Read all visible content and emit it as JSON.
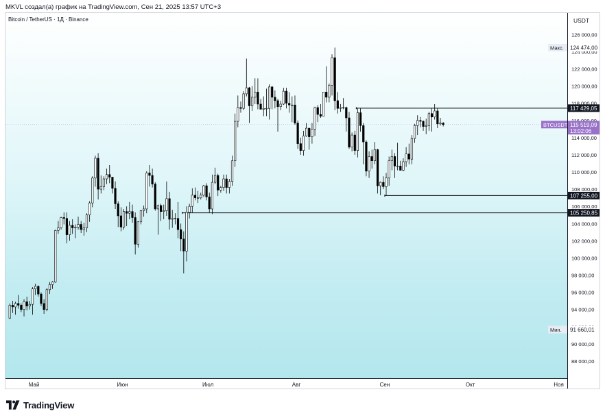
{
  "header": {
    "attribution": "MKVL создал(а) график на TradingView.com, Сен 21, 2025 13:57 UTC+3"
  },
  "symbol": {
    "description": "Bitcoin / TetherUS · 1Д · Binance"
  },
  "axis": {
    "currency": "USDT"
  },
  "footer": {
    "brand": "TradingView"
  },
  "colors": {
    "bull": "#ffffff",
    "bear": "#000000",
    "wick": "#000000",
    "price_tag": "#9a73c9"
  },
  "chart_data": {
    "type": "candlestick",
    "interval": "1D",
    "ylim": [
      86000,
      128500
    ],
    "y_ticks": [
      {
        "value": 88000,
        "label": "88 000,00"
      },
      {
        "value": 90000,
        "label": "90 000,00"
      },
      {
        "value": 92000,
        "label": "92 000,00"
      },
      {
        "value": 94000,
        "label": "94 000,00"
      },
      {
        "value": 96000,
        "label": "96 000,00"
      },
      {
        "value": 98000,
        "label": "98 000,00"
      },
      {
        "value": 100000,
        "label": "100 000,00"
      },
      {
        "value": 102000,
        "label": "102 000,00"
      },
      {
        "value": 104000,
        "label": "104 000,00"
      },
      {
        "value": 106000,
        "label": "106 000,00"
      },
      {
        "value": 108000,
        "label": "108 000,00"
      },
      {
        "value": 110000,
        "label": "110 000,00"
      },
      {
        "value": 112000,
        "label": "112 000,00"
      },
      {
        "value": 114000,
        "label": "114 000,00"
      },
      {
        "value": 116000,
        "label": "116 000,00"
      },
      {
        "value": 118000,
        "label": "118 000,00"
      },
      {
        "value": 120000,
        "label": "120 000,00"
      },
      {
        "value": 122000,
        "label": "122 000,00"
      },
      {
        "value": 124000,
        "label": "124 000,00"
      },
      {
        "value": 126000,
        "label": "126 000,00"
      }
    ],
    "x_ticks": [
      {
        "date": "2025-05-01",
        "label": "Май"
      },
      {
        "date": "2025-06-01",
        "label": "Июн"
      },
      {
        "date": "2025-07-01",
        "label": "Июл"
      },
      {
        "date": "2025-08-01",
        "label": "Авг"
      },
      {
        "date": "2025-09-01",
        "label": "Сен"
      },
      {
        "date": "2025-10-01",
        "label": "Окт"
      },
      {
        "date": "2025-11-01",
        "label": "Ноя"
      }
    ],
    "x_range": [
      "2025-04-21",
      "2025-11-04"
    ],
    "max_marker": {
      "label": "Макс.",
      "value_label": "124 474,00",
      "value": 124474
    },
    "min_marker": {
      "label": "Мин.",
      "value_label": "91 660,01",
      "value": 91660.01
    },
    "current_price": {
      "symbol": "BTCUSDT",
      "value_label": "115 519,09",
      "countdown": "13:02:06",
      "value": 115519.09
    },
    "levels": [
      {
        "value": 117429.05,
        "label": "117 429,05",
        "start": "2025-08-22",
        "style": "solid"
      },
      {
        "value": 107255.0,
        "label": "107 255,00",
        "start": "2025-09-01",
        "style": "solid"
      },
      {
        "value": 105250.85,
        "label": "105 250,85",
        "start": "2025-06-22",
        "style": "solid"
      }
    ],
    "candles": [
      [
        "2025-04-22",
        93000,
        94700,
        92900,
        94500
      ],
      [
        "2025-04-23",
        94500,
        95000,
        93600,
        94300
      ],
      [
        "2025-04-24",
        94300,
        94900,
        93400,
        94700
      ],
      [
        "2025-04-25",
        94700,
        95700,
        94100,
        94500
      ],
      [
        "2025-04-26",
        94500,
        94700,
        93700,
        94000
      ],
      [
        "2025-04-27",
        94000,
        95200,
        93200,
        94900
      ],
      [
        "2025-04-28",
        94900,
        95500,
        93900,
        94400
      ],
      [
        "2025-04-29",
        94400,
        95000,
        94000,
        94600
      ],
      [
        "2025-04-30",
        94600,
        96600,
        93400,
        96400
      ],
      [
        "2025-05-01",
        96400,
        97000,
        95700,
        96700
      ],
      [
        "2025-05-02",
        96700,
        96800,
        95500,
        95800
      ],
      [
        "2025-05-03",
        95800,
        96000,
        94400,
        94700
      ],
      [
        "2025-05-04",
        94700,
        95200,
        93500,
        94000
      ],
      [
        "2025-05-05",
        94000,
        96500,
        93800,
        96300
      ],
      [
        "2025-05-06",
        96300,
        97200,
        95800,
        96900
      ],
      [
        "2025-05-07",
        96900,
        97300,
        96400,
        97200
      ],
      [
        "2025-05-08",
        97200,
        103300,
        97100,
        103200
      ],
      [
        "2025-05-09",
        103200,
        104300,
        102800,
        103500
      ],
      [
        "2025-05-10",
        103500,
        104800,
        103300,
        104700
      ],
      [
        "2025-05-11",
        104700,
        105300,
        103900,
        104600
      ],
      [
        "2025-05-12",
        104600,
        105300,
        101700,
        102700
      ],
      [
        "2025-05-13",
        102700,
        104300,
        102000,
        103800
      ],
      [
        "2025-05-14",
        103800,
        104500,
        102800,
        103500
      ],
      [
        "2025-05-15",
        103500,
        103900,
        102300,
        103600
      ],
      [
        "2025-05-16",
        103600,
        104800,
        103300,
        103900
      ],
      [
        "2025-05-17",
        103900,
        104300,
        102900,
        103300
      ],
      [
        "2025-05-18",
        103300,
        104100,
        102600,
        103500
      ],
      [
        "2025-05-19",
        103500,
        105200,
        103000,
        105000
      ],
      [
        "2025-05-20",
        105000,
        106600,
        104200,
        106400
      ],
      [
        "2025-05-21",
        106400,
        109500,
        105900,
        109300
      ],
      [
        "2025-05-22",
        109300,
        111900,
        108300,
        111600
      ],
      [
        "2025-05-23",
        111600,
        112200,
        106800,
        108000
      ],
      [
        "2025-05-24",
        108000,
        109600,
        107500,
        108300
      ],
      [
        "2025-05-25",
        108300,
        109500,
        107900,
        109200
      ],
      [
        "2025-05-26",
        109200,
        110400,
        108600,
        109700
      ],
      [
        "2025-05-27",
        109700,
        110800,
        108700,
        109400
      ],
      [
        "2025-05-28",
        109400,
        109400,
        107500,
        108100
      ],
      [
        "2025-05-29",
        108100,
        108900,
        105700,
        106300
      ],
      [
        "2025-05-30",
        106300,
        106600,
        103600,
        104900
      ],
      [
        "2025-05-31",
        104900,
        105900,
        103100,
        103600
      ],
      [
        "2025-06-01",
        103600,
        105700,
        103300,
        105400
      ],
      [
        "2025-06-02",
        105400,
        106000,
        103700,
        105200
      ],
      [
        "2025-06-03",
        105200,
        106500,
        104500,
        105400
      ],
      [
        "2025-06-04",
        105400,
        106200,
        104100,
        104700
      ],
      [
        "2025-06-05",
        104700,
        105300,
        100400,
        101600
      ],
      [
        "2025-06-06",
        101600,
        104300,
        101200,
        104200
      ],
      [
        "2025-06-07",
        104200,
        105600,
        103900,
        105500
      ],
      [
        "2025-06-08",
        105500,
        106100,
        104800,
        105700
      ],
      [
        "2025-06-09",
        105700,
        110100,
        105200,
        109900
      ],
      [
        "2025-06-10",
        109900,
        110800,
        108300,
        109600
      ],
      [
        "2025-06-11",
        109600,
        110400,
        108200,
        108600
      ],
      [
        "2025-06-12",
        108600,
        108800,
        105500,
        105700
      ],
      [
        "2025-06-13",
        105700,
        106200,
        102700,
        106100
      ],
      [
        "2025-06-14",
        106100,
        106300,
        104300,
        105400
      ],
      [
        "2025-06-15",
        105400,
        106200,
        104500,
        105500
      ],
      [
        "2025-06-16",
        105500,
        108900,
        104900,
        106900
      ],
      [
        "2025-06-17",
        106900,
        107700,
        103300,
        104500
      ],
      [
        "2025-06-18",
        104500,
        105600,
        103500,
        104600
      ],
      [
        "2025-06-19",
        104600,
        105200,
        103900,
        104600
      ],
      [
        "2025-06-20",
        104600,
        106500,
        102300,
        103300
      ],
      [
        "2025-06-21",
        103300,
        104000,
        100800,
        102200
      ],
      [
        "2025-06-22",
        102200,
        103100,
        98200,
        100800
      ],
      [
        "2025-06-23",
        100800,
        106000,
        99600,
        105300
      ],
      [
        "2025-06-24",
        105300,
        106300,
        104600,
        106000
      ],
      [
        "2025-06-25",
        106000,
        108100,
        105300,
        107300
      ],
      [
        "2025-06-26",
        107300,
        108200,
        106700,
        107000
      ],
      [
        "2025-06-27",
        107000,
        107800,
        106400,
        107000
      ],
      [
        "2025-06-28",
        107000,
        107600,
        106800,
        107300
      ],
      [
        "2025-06-29",
        107300,
        108500,
        107100,
        108400
      ],
      [
        "2025-06-30",
        108400,
        108700,
        106700,
        107100
      ],
      [
        "2025-07-01",
        107100,
        107600,
        105300,
        105700
      ],
      [
        "2025-07-02",
        105700,
        109700,
        105100,
        108800
      ],
      [
        "2025-07-03",
        108800,
        110500,
        108600,
        109600
      ],
      [
        "2025-07-04",
        109600,
        109800,
        107200,
        107900
      ],
      [
        "2025-07-05",
        107900,
        108400,
        107600,
        108200
      ],
      [
        "2025-07-06",
        108200,
        109700,
        107800,
        109200
      ],
      [
        "2025-07-07",
        109200,
        109700,
        107500,
        108200
      ],
      [
        "2025-07-08",
        108200,
        109200,
        107500,
        108900
      ],
      [
        "2025-07-09",
        108900,
        111900,
        108400,
        111300
      ],
      [
        "2025-07-10",
        111300,
        116800,
        110600,
        115900
      ],
      [
        "2025-07-11",
        115900,
        118900,
        115200,
        117500
      ],
      [
        "2025-07-12",
        117500,
        118200,
        116900,
        117400
      ],
      [
        "2025-07-13",
        117400,
        119400,
        117200,
        119100
      ],
      [
        "2025-07-14",
        119100,
        123200,
        118800,
        119800
      ],
      [
        "2025-07-15",
        119800,
        119900,
        115700,
        117700
      ],
      [
        "2025-07-16",
        117700,
        120000,
        117100,
        118700
      ],
      [
        "2025-07-17",
        118700,
        120900,
        117900,
        119300
      ],
      [
        "2025-07-18",
        119300,
        120900,
        117300,
        117900
      ],
      [
        "2025-07-19",
        117900,
        118500,
        117500,
        117300
      ],
      [
        "2025-07-20",
        117300,
        118800,
        116500,
        117400
      ],
      [
        "2025-07-21",
        117400,
        119700,
        116500,
        117400
      ],
      [
        "2025-07-22",
        117400,
        120200,
        116100,
        119900
      ],
      [
        "2025-07-23",
        119900,
        120000,
        117300,
        118700
      ],
      [
        "2025-07-24",
        118700,
        119500,
        117400,
        118300
      ],
      [
        "2025-07-25",
        118300,
        118500,
        114700,
        117600
      ],
      [
        "2025-07-26",
        117600,
        118300,
        117200,
        117900
      ],
      [
        "2025-07-27",
        117900,
        119800,
        117800,
        119400
      ],
      [
        "2025-07-28",
        119400,
        119800,
        117400,
        118000
      ],
      [
        "2025-07-29",
        118000,
        119300,
        116900,
        117800
      ],
      [
        "2025-07-30",
        117800,
        118800,
        115800,
        117800
      ],
      [
        "2025-07-31",
        117800,
        118900,
        115500,
        115700
      ],
      [
        "2025-08-01",
        115700,
        116000,
        112700,
        113300
      ],
      [
        "2025-08-02",
        113300,
        114000,
        112000,
        112500
      ],
      [
        "2025-08-03",
        112500,
        114800,
        111900,
        114200
      ],
      [
        "2025-08-04",
        114200,
        115700,
        114100,
        115100
      ],
      [
        "2025-08-05",
        115100,
        115100,
        112600,
        114100
      ],
      [
        "2025-08-06",
        114100,
        115700,
        113300,
        115000
      ],
      [
        "2025-08-07",
        115000,
        117600,
        114200,
        117500
      ],
      [
        "2025-08-08",
        117500,
        117800,
        115800,
        116700
      ],
      [
        "2025-08-09",
        116700,
        117900,
        116300,
        116500
      ],
      [
        "2025-08-10",
        116500,
        119300,
        116500,
        119300
      ],
      [
        "2025-08-11",
        119300,
        122300,
        118100,
        118700
      ],
      [
        "2025-08-12",
        118700,
        120300,
        118100,
        120100
      ],
      [
        "2025-08-13",
        120100,
        123700,
        118900,
        123300
      ],
      [
        "2025-08-14",
        123300,
        124474,
        117200,
        118300
      ],
      [
        "2025-08-15",
        118300,
        119300,
        116800,
        117400
      ],
      [
        "2025-08-16",
        117400,
        117900,
        117000,
        117500
      ],
      [
        "2025-08-17",
        117500,
        118600,
        117300,
        117500
      ],
      [
        "2025-08-18",
        117500,
        117600,
        114700,
        116300
      ],
      [
        "2025-08-19",
        116300,
        117000,
        112700,
        112900
      ],
      [
        "2025-08-20",
        112900,
        114600,
        112400,
        114300
      ],
      [
        "2025-08-21",
        114300,
        114800,
        112000,
        112500
      ],
      [
        "2025-08-22",
        112500,
        117400,
        111700,
        116900
      ],
      [
        "2025-08-23",
        116900,
        117400,
        114700,
        115400
      ],
      [
        "2025-08-24",
        115400,
        115700,
        110900,
        113500
      ],
      [
        "2025-08-25",
        113500,
        113700,
        109500,
        110100
      ],
      [
        "2025-08-26",
        110100,
        112400,
        109300,
        111800
      ],
      [
        "2025-08-27",
        111800,
        112600,
        110400,
        111300
      ],
      [
        "2025-08-28",
        111300,
        113500,
        110900,
        112600
      ],
      [
        "2025-08-29",
        112600,
        112700,
        107500,
        108400
      ],
      [
        "2025-08-30",
        108400,
        108900,
        107300,
        108800
      ],
      [
        "2025-08-31",
        108800,
        109500,
        108000,
        108300
      ],
      [
        "2025-09-01",
        108300,
        109900,
        107255,
        109300
      ],
      [
        "2025-09-02",
        109300,
        111800,
        108400,
        111300
      ],
      [
        "2025-09-03",
        111300,
        112600,
        110200,
        111800
      ],
      [
        "2025-09-04",
        111800,
        112200,
        109300,
        110700
      ],
      [
        "2025-09-05",
        110700,
        113400,
        110200,
        110700
      ],
      [
        "2025-09-06",
        110700,
        111300,
        110200,
        110200
      ],
      [
        "2025-09-07",
        110200,
        111600,
        110100,
        111200
      ],
      [
        "2025-09-08",
        111200,
        112900,
        110600,
        112100
      ],
      [
        "2025-09-09",
        112100,
        113300,
        110900,
        111500
      ],
      [
        "2025-09-10",
        111500,
        114300,
        110900,
        113900
      ],
      [
        "2025-09-11",
        113900,
        115600,
        113400,
        115400
      ],
      [
        "2025-09-12",
        115400,
        116600,
        114300,
        116000
      ],
      [
        "2025-09-13",
        116000,
        116400,
        115200,
        115900
      ],
      [
        "2025-09-14",
        115900,
        116000,
        114800,
        115300
      ],
      [
        "2025-09-15",
        115300,
        116200,
        114400,
        115400
      ],
      [
        "2025-09-16",
        115400,
        117000,
        114800,
        116800
      ],
      [
        "2025-09-17",
        116800,
        117400,
        114700,
        116400
      ],
      [
        "2025-09-18",
        116400,
        117900,
        116100,
        117100
      ],
      [
        "2025-09-19",
        117100,
        117400,
        115100,
        115600
      ],
      [
        "2025-09-20",
        115600,
        116300,
        115400,
        115700
      ],
      [
        "2025-09-21",
        115700,
        115800,
        115300,
        115519
      ]
    ]
  }
}
